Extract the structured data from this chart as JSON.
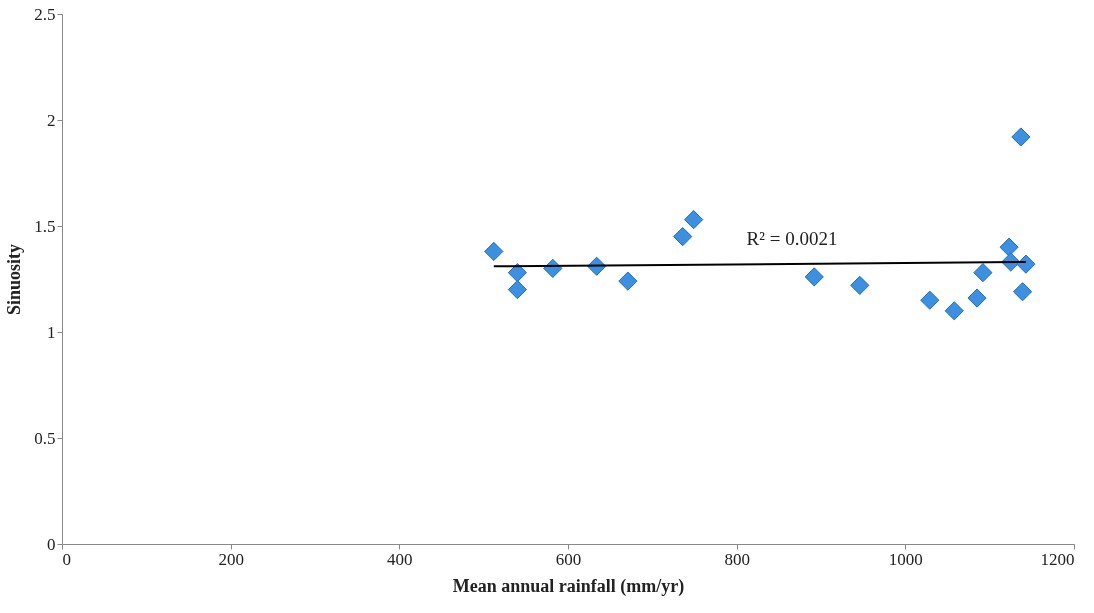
{
  "chart_data": {
    "type": "scatter",
    "xlabel": "Mean annual rainfall (mm/yr)",
    "ylabel": "Sinuosity",
    "xlim": [
      0,
      1200
    ],
    "xticks": [
      0,
      200,
      400,
      600,
      800,
      1000,
      1200
    ],
    "ylim": [
      0,
      2.5
    ],
    "yticks": [
      0,
      0.5,
      1,
      1.5,
      2,
      2.5
    ],
    "grid": false,
    "annotations": [
      "R² = 0.0021"
    ],
    "series": [
      {
        "marker": "diamond",
        "color": "#3d8fe0",
        "x": [
          512,
          540,
          540,
          582,
          634,
          671,
          736,
          749,
          892,
          946,
          1029,
          1058,
          1085,
          1092,
          1123,
          1125,
          1143,
          1139,
          1137
        ],
        "values": [
          1.38,
          1.28,
          1.2,
          1.3,
          1.31,
          1.24,
          1.45,
          1.53,
          1.26,
          1.22,
          1.15,
          1.1,
          1.16,
          1.28,
          1.4,
          1.33,
          1.32,
          1.19,
          1.92
        ]
      },
      {
        "type": "line",
        "color": "#000000",
        "x": [
          512,
          1143
        ],
        "values": [
          1.31,
          1.33
        ]
      }
    ]
  }
}
